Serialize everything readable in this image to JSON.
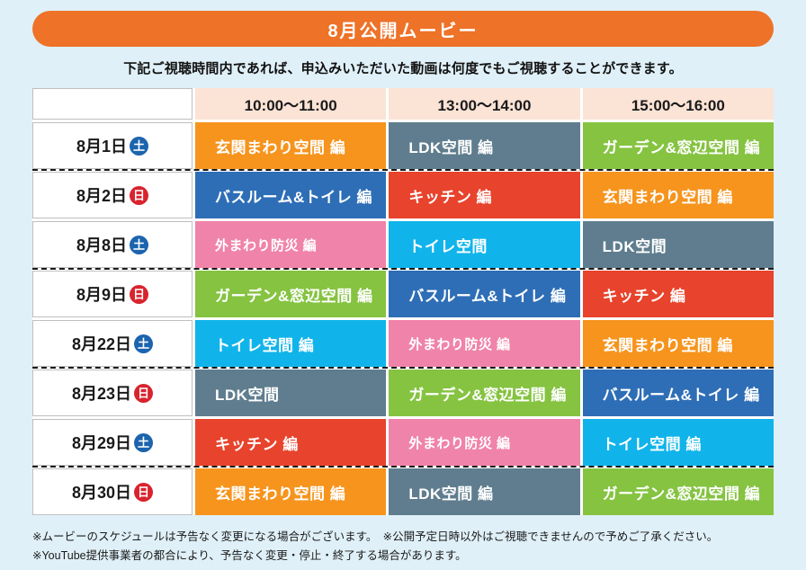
{
  "banner": {
    "title": "8月公開ムービー"
  },
  "subtitle": "下記ご視聴時間内であれば、申込みいただいた動画は何度でもご視聴することができます。",
  "colors": {
    "page_background": "#E0F0F8",
    "banner_orange": "#EE7227",
    "time_header_peach": "#FBE3D5",
    "orange": "#F6941D",
    "slate": "#5F7D8E",
    "green": "#85C341",
    "blue": "#2E6EB6",
    "red": "#E8432C",
    "pink": "#F083A9",
    "cyan": "#10B4EA",
    "saturday_blue": "#1C64AE",
    "sunday_red": "#D8242E"
  },
  "table": {
    "time_headers": [
      "10:00〜11:00",
      "13:00〜14:00",
      "15:00〜16:00"
    ],
    "rows": [
      {
        "date": "8月1日",
        "day": "土",
        "day_color": "saturday_blue",
        "cells": [
          {
            "label": "玄関まわり空間 編",
            "color": "orange"
          },
          {
            "label": "LDK空間 編",
            "color": "slate"
          },
          {
            "label": "ガーデン&窓辺空間 編",
            "color": "green"
          }
        ]
      },
      {
        "date": "8月2日",
        "day": "日",
        "day_color": "sunday_red",
        "cells": [
          {
            "label": "バスルーム&トイレ 編",
            "color": "blue"
          },
          {
            "label": "キッチン 編",
            "color": "red"
          },
          {
            "label": "玄関まわり空間 編",
            "color": "orange"
          }
        ]
      },
      {
        "date": "8月8日",
        "day": "土",
        "day_color": "saturday_blue",
        "cells": [
          {
            "label": "外まわり防災 編",
            "color": "pink"
          },
          {
            "label": "トイレ空間",
            "color": "cyan"
          },
          {
            "label": "LDK空間",
            "color": "slate"
          }
        ]
      },
      {
        "date": "8月9日",
        "day": "日",
        "day_color": "sunday_red",
        "cells": [
          {
            "label": "ガーデン&窓辺空間 編",
            "color": "green"
          },
          {
            "label": "バスルーム&トイレ 編",
            "color": "blue"
          },
          {
            "label": "キッチン 編",
            "color": "red"
          }
        ]
      },
      {
        "date": "8月22日",
        "day": "土",
        "day_color": "saturday_blue",
        "cells": [
          {
            "label": "トイレ空間 編",
            "color": "cyan"
          },
          {
            "label": "外まわり防災 編",
            "color": "pink"
          },
          {
            "label": "玄関まわり空間 編",
            "color": "orange"
          }
        ]
      },
      {
        "date": "8月23日",
        "day": "日",
        "day_color": "sunday_red",
        "cells": [
          {
            "label": "LDK空間",
            "color": "slate"
          },
          {
            "label": "ガーデン&窓辺空間 編",
            "color": "green"
          },
          {
            "label": "バスルーム&トイレ 編",
            "color": "blue"
          }
        ]
      },
      {
        "date": "8月29日",
        "day": "土",
        "day_color": "saturday_blue",
        "cells": [
          {
            "label": "キッチン 編",
            "color": "red"
          },
          {
            "label": "外まわり防災 編",
            "color": "pink"
          },
          {
            "label": "トイレ空間 編",
            "color": "cyan"
          }
        ]
      },
      {
        "date": "8月30日",
        "day": "日",
        "day_color": "sunday_red",
        "cells": [
          {
            "label": "玄関まわり空間 編",
            "color": "orange"
          },
          {
            "label": "LDK空間 編",
            "color": "slate"
          },
          {
            "label": "ガーデン&窓辺空間 編",
            "color": "green"
          }
        ]
      }
    ]
  },
  "notes": [
    "※ムービーのスケジュールは予告なく変更になる場合がございます。　※公開予定日時以外はご視聴できませんので予めご了承ください。",
    "※YouTube提供事業者の都合により、予告なく変更・停止・終了する場合があります。"
  ]
}
